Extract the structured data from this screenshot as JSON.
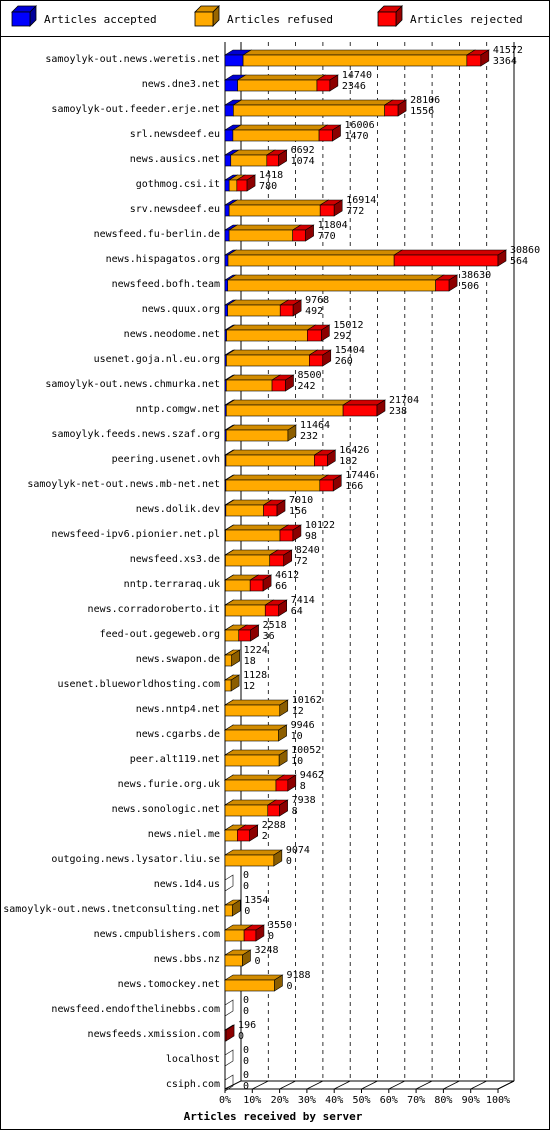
{
  "chart_data": {
    "type": "bar",
    "stacked": true,
    "orientation": "horizontal",
    "title": "",
    "xlabel": "Articles received by server",
    "ylabel": "",
    "xlim": [
      0,
      100
    ],
    "x_ticks": [
      "0%",
      "10%",
      "20%",
      "30%",
      "40%",
      "50%",
      "60%",
      "70%",
      "80%",
      "90%",
      "100%"
    ],
    "legend_position": "top",
    "grid": true,
    "series": [
      {
        "name": "Articles accepted",
        "color": "#0000ff"
      },
      {
        "name": "Articles refused",
        "color": "#ffaa00"
      },
      {
        "name": "Articles rejected",
        "color": "#ff0000"
      }
    ],
    "rows": [
      {
        "server": "samoylyk-out.news.weretis.net",
        "accepted": 3364,
        "refused": 41572,
        "rejected": 2600,
        "label1": "41572",
        "label2": "3364"
      },
      {
        "server": "news.dne3.net",
        "accepted": 2346,
        "refused": 14740,
        "rejected": 2400,
        "label1": "14740",
        "label2": "2346"
      },
      {
        "server": "samoylyk-out.feeder.erje.net",
        "accepted": 1556,
        "refused": 28106,
        "rejected": 2500,
        "label1": "28106",
        "label2": "1556"
      },
      {
        "server": "srl.newsdeef.eu",
        "accepted": 1470,
        "refused": 16006,
        "rejected": 2500,
        "label1": "16006",
        "label2": "1470"
      },
      {
        "server": "news.ausics.net",
        "accepted": 1074,
        "refused": 6692,
        "rejected": 2200,
        "label1": "6692",
        "label2": "1074"
      },
      {
        "server": "gothmog.csi.it",
        "accepted": 780,
        "refused": 1418,
        "rejected": 1900,
        "label1": "1418",
        "label2": "780"
      },
      {
        "server": "srv.newsdeef.eu",
        "accepted": 772,
        "refused": 16914,
        "rejected": 2600,
        "label1": "16914",
        "label2": "772"
      },
      {
        "server": "newsfeed.fu-berlin.de",
        "accepted": 770,
        "refused": 11804,
        "rejected": 2400,
        "label1": "11804",
        "label2": "770"
      },
      {
        "server": "news.hispagatos.org",
        "accepted": 564,
        "refused": 30860,
        "rejected": 19300,
        "label1": "30860",
        "label2": "564"
      },
      {
        "server": "newsfeed.bofh.team",
        "accepted": 506,
        "refused": 38630,
        "rejected": 2500,
        "label1": "38630",
        "label2": "506"
      },
      {
        "server": "news.quux.org",
        "accepted": 492,
        "refused": 9768,
        "rejected": 2400,
        "label1": "9768",
        "label2": "492"
      },
      {
        "server": "news.neodome.net",
        "accepted": 292,
        "refused": 15012,
        "rejected": 2600,
        "label1": "15012",
        "label2": "292"
      },
      {
        "server": "usenet.goja.nl.eu.org",
        "accepted": 260,
        "refused": 15404,
        "rejected": 2500,
        "label1": "15404",
        "label2": "260"
      },
      {
        "server": "samoylyk-out.news.chmurka.net",
        "accepted": 242,
        "refused": 8500,
        "rejected": 2500,
        "label1": "8500",
        "label2": "242"
      },
      {
        "server": "nntp.comgw.net",
        "accepted": 238,
        "refused": 21704,
        "rejected": 6300,
        "label1": "21704",
        "label2": "238"
      },
      {
        "server": "samoylyk.feeds.news.szaf.org",
        "accepted": 232,
        "refused": 11464,
        "rejected": 0,
        "label1": "11464",
        "label2": "232"
      },
      {
        "server": "peering.usenet.ovh",
        "accepted": 182,
        "refused": 16426,
        "rejected": 2400,
        "label1": "16426",
        "label2": "182"
      },
      {
        "server": "samoylyk-net-out.news.mb-net.net",
        "accepted": 166,
        "refused": 17446,
        "rejected": 2500,
        "label1": "17446",
        "label2": "166"
      },
      {
        "server": "news.dolik.dev",
        "accepted": 156,
        "refused": 7010,
        "rejected": 2500,
        "label1": "7010",
        "label2": "156"
      },
      {
        "server": "newsfeed-ipv6.pionier.net.pl",
        "accepted": 98,
        "refused": 10122,
        "rejected": 2400,
        "label1": "10122",
        "label2": "98"
      },
      {
        "server": "newsfeed.xs3.de",
        "accepted": 72,
        "refused": 8240,
        "rejected": 2600,
        "label1": "8240",
        "label2": "72"
      },
      {
        "server": "nntp.terraraq.uk",
        "accepted": 66,
        "refused": 4612,
        "rejected": 2400,
        "label1": "4612",
        "label2": "66"
      },
      {
        "server": "news.corradoroberto.it",
        "accepted": 64,
        "refused": 7414,
        "rejected": 2500,
        "label1": "7414",
        "label2": "64"
      },
      {
        "server": "feed-out.gegeweb.org",
        "accepted": 36,
        "refused": 2518,
        "rejected": 2200,
        "label1": "2518",
        "label2": "36"
      },
      {
        "server": "news.swapon.de",
        "accepted": 18,
        "refused": 1224,
        "rejected": 0,
        "label1": "1224",
        "label2": "18"
      },
      {
        "server": "usenet.blueworldhosting.com",
        "accepted": 12,
        "refused": 1128,
        "rejected": 0,
        "label1": "1128",
        "label2": "12"
      },
      {
        "server": "news.nntp4.net",
        "accepted": 12,
        "refused": 10162,
        "rejected": 0,
        "label1": "10162",
        "label2": "12"
      },
      {
        "server": "news.cgarbs.de",
        "accepted": 10,
        "refused": 9946,
        "rejected": 0,
        "label1": "9946",
        "label2": "10"
      },
      {
        "server": "peer.alt119.net",
        "accepted": 10,
        "refused": 10052,
        "rejected": 0,
        "label1": "10052",
        "label2": "10"
      },
      {
        "server": "news.furie.org.uk",
        "accepted": 8,
        "refused": 9462,
        "rejected": 2200,
        "label1": "9462",
        "label2": "8"
      },
      {
        "server": "news.sonologic.net",
        "accepted": 8,
        "refused": 7938,
        "rejected": 2200,
        "label1": "7938",
        "label2": "8"
      },
      {
        "server": "news.niel.me",
        "accepted": 2,
        "refused": 2288,
        "rejected": 2300,
        "label1": "2288",
        "label2": "2"
      },
      {
        "server": "outgoing.news.lysator.liu.se",
        "accepted": 0,
        "refused": 9074,
        "rejected": 0,
        "label1": "9074",
        "label2": "0"
      },
      {
        "server": "news.1d4.us",
        "accepted": 0,
        "refused": 0,
        "rejected": 0,
        "label1": "0",
        "label2": "0"
      },
      {
        "server": "samoylyk-out.news.tnetconsulting.net",
        "accepted": 0,
        "refused": 1354,
        "rejected": 0,
        "label1": "1354",
        "label2": "0"
      },
      {
        "server": "news.cmpublishers.com",
        "accepted": 0,
        "refused": 3550,
        "rejected": 2200,
        "label1": "3550",
        "label2": "0"
      },
      {
        "server": "news.bbs.nz",
        "accepted": 0,
        "refused": 3248,
        "rejected": 0,
        "label1": "3248",
        "label2": "0"
      },
      {
        "server": "news.tomockey.net",
        "accepted": 0,
        "refused": 9188,
        "rejected": 0,
        "label1": "9188",
        "label2": "0"
      },
      {
        "server": "newsfeed.endofthelinebbs.com",
        "accepted": 0,
        "refused": 0,
        "rejected": 0,
        "label1": "0",
        "label2": "0"
      },
      {
        "server": "newsfeeds.xmission.com",
        "accepted": 0,
        "refused": 0,
        "rejected": 196,
        "label1": "196",
        "label2": "0"
      },
      {
        "server": "localhost",
        "accepted": 0,
        "refused": 0,
        "rejected": 0,
        "label1": "0",
        "label2": "0"
      },
      {
        "server": "csiph.com",
        "accepted": 0,
        "refused": 0,
        "rejected": 0,
        "label1": "0",
        "label2": "0"
      }
    ]
  }
}
